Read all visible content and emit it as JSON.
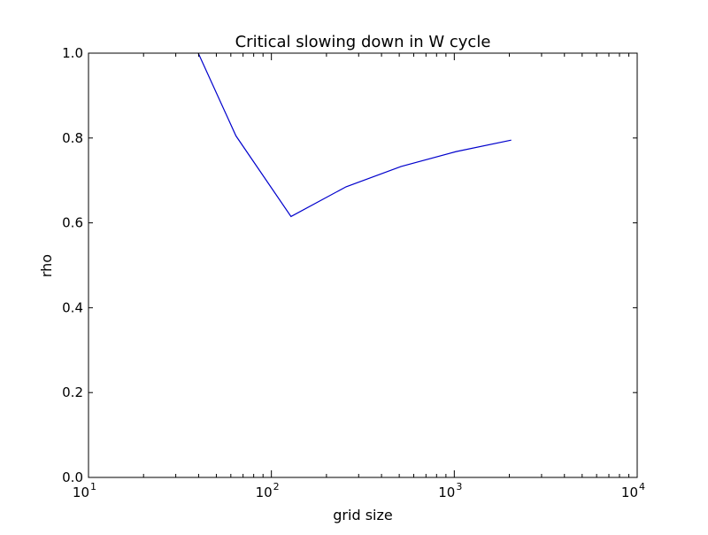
{
  "chart_data": {
    "type": "line",
    "title": "Critical slowing down in W cycle",
    "xlabel": "grid size",
    "ylabel": "rho",
    "xscale": "log",
    "xlim": [
      10,
      10000
    ],
    "ylim": [
      0.0,
      1.0
    ],
    "grid": false,
    "x_ticks": [
      {
        "value": 10,
        "base": "10",
        "exp": "1"
      },
      {
        "value": 100,
        "base": "10",
        "exp": "2"
      },
      {
        "value": 1000,
        "base": "10",
        "exp": "3"
      },
      {
        "value": 10000,
        "base": "10",
        "exp": "4"
      }
    ],
    "y_ticks": [
      {
        "value": 0.0,
        "label": "0.0"
      },
      {
        "value": 0.2,
        "label": "0.2"
      },
      {
        "value": 0.4,
        "label": "0.4"
      },
      {
        "value": 0.6,
        "label": "0.6"
      },
      {
        "value": 0.8,
        "label": "0.8"
      },
      {
        "value": 1.0,
        "label": "1.0"
      }
    ],
    "series": [
      {
        "color": "#0000cc",
        "x": [
          32,
          64,
          128,
          256,
          512,
          1024,
          2048
        ],
        "y": [
          1.09,
          0.805,
          0.615,
          0.685,
          0.733,
          0.768,
          0.795
        ]
      }
    ]
  }
}
